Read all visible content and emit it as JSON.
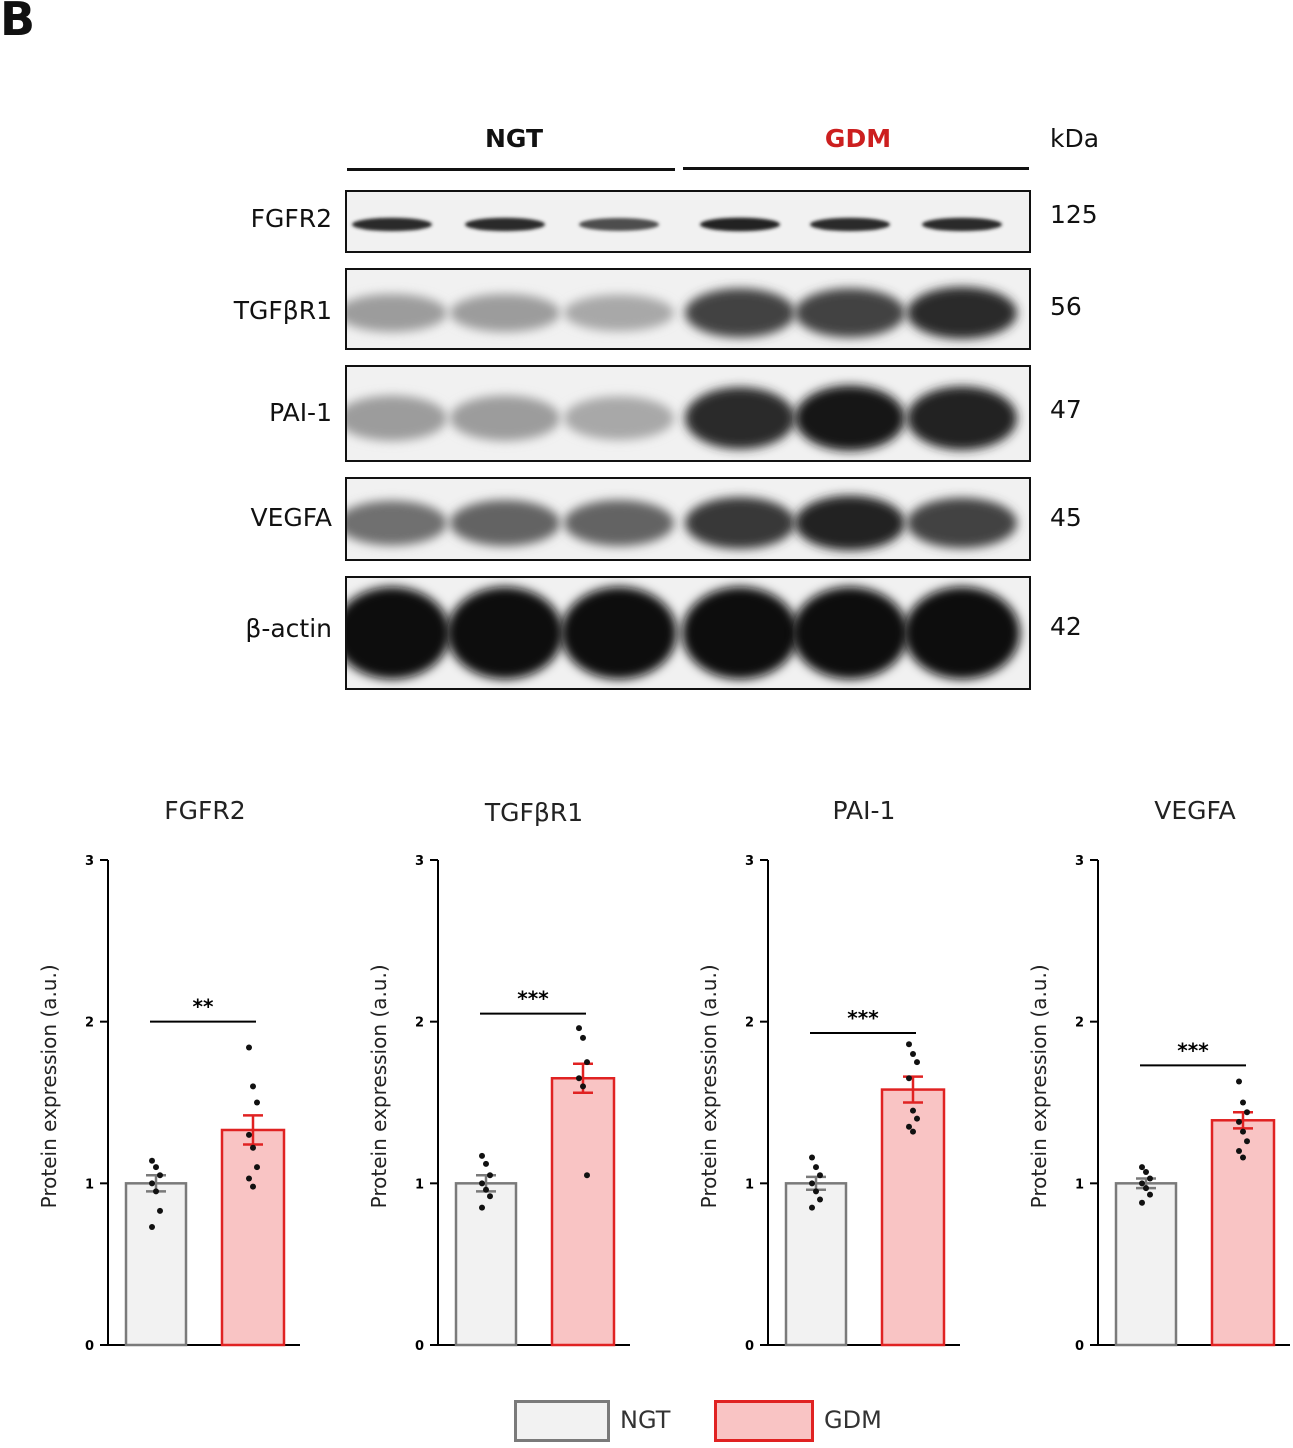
{
  "panel_letter": "B",
  "blot": {
    "group_labels": [
      {
        "text": "NGT",
        "color": "#111111"
      },
      {
        "text": "GDM",
        "color": "#cc1f1f"
      }
    ],
    "kda_header": "kDa",
    "rows": [
      {
        "label": "FGFR2",
        "kda": "125",
        "intensity": [
          0.85,
          0.85,
          0.7,
          0.9,
          0.85,
          0.85
        ],
        "band_type": "thin"
      },
      {
        "label": "TGFβR1",
        "kda": "56",
        "intensity": [
          0.35,
          0.35,
          0.3,
          0.75,
          0.75,
          0.85
        ],
        "band_type": "medium"
      },
      {
        "label": "PAI-1",
        "kda": "47",
        "intensity": [
          0.35,
          0.35,
          0.3,
          0.85,
          0.95,
          0.9
        ],
        "band_type": "medium"
      },
      {
        "label": "VEGFA",
        "kda": "45",
        "intensity": [
          0.55,
          0.6,
          0.6,
          0.8,
          0.9,
          0.75
        ],
        "band_type": "medium"
      },
      {
        "label": "β-actin",
        "kda": "42",
        "intensity": [
          1,
          1,
          1,
          1,
          1,
          1
        ],
        "band_type": "thick"
      }
    ]
  },
  "chart_data": [
    {
      "type": "bar",
      "title": "FGFR2",
      "ylabel": "Protein expression (a.u.)",
      "ylim": [
        0,
        3
      ],
      "yticks": [
        "0",
        "1",
        "2",
        "3"
      ],
      "categories": [
        "NGT",
        "GDM"
      ],
      "values": [
        1.0,
        1.33
      ],
      "errors": [
        0.05,
        0.09
      ],
      "points": [
        [
          1.14,
          1.1,
          1.05,
          1.0,
          0.95,
          0.83,
          0.73
        ],
        [
          1.84,
          1.6,
          1.5,
          1.3,
          1.22,
          1.1,
          1.03,
          0.98
        ]
      ],
      "significance": "**",
      "sig_y": 2.0
    },
    {
      "type": "bar",
      "title": "TGFβR1",
      "ylabel": "Protein expression (a.u.)",
      "ylim": [
        0,
        3
      ],
      "yticks": [
        "0",
        "1",
        "2",
        "3"
      ],
      "categories": [
        "NGT",
        "GDM"
      ],
      "values": [
        1.0,
        1.65
      ],
      "errors": [
        0.05,
        0.09
      ],
      "points": [
        [
          1.17,
          1.12,
          1.05,
          1.0,
          0.96,
          0.92,
          0.85
        ],
        [
          1.96,
          1.9,
          1.75,
          1.65,
          1.6,
          1.05
        ]
      ],
      "significance": "***",
      "sig_y": 2.05
    },
    {
      "type": "bar",
      "title": "PAI-1",
      "ylabel": "Protein expression (a.u.)",
      "ylim": [
        0,
        3
      ],
      "yticks": [
        "0",
        "1",
        "2",
        "3"
      ],
      "categories": [
        "NGT",
        "GDM"
      ],
      "values": [
        1.0,
        1.58
      ],
      "errors": [
        0.04,
        0.08
      ],
      "points": [
        [
          1.16,
          1.1,
          1.05,
          1.0,
          0.95,
          0.9,
          0.85
        ],
        [
          1.86,
          1.8,
          1.75,
          1.65,
          1.45,
          1.4,
          1.35,
          1.32
        ]
      ],
      "significance": "***",
      "sig_y": 1.93
    },
    {
      "type": "bar",
      "title": "VEGFA",
      "ylabel": "Protein expression (a.u.)",
      "ylim": [
        0,
        3
      ],
      "yticks": [
        "0",
        "1",
        "2",
        "3"
      ],
      "categories": [
        "NGT",
        "GDM"
      ],
      "values": [
        1.0,
        1.39
      ],
      "errors": [
        0.03,
        0.05
      ],
      "points": [
        [
          1.1,
          1.07,
          1.03,
          1.0,
          0.97,
          0.93,
          0.88
        ],
        [
          1.63,
          1.5,
          1.44,
          1.38,
          1.32,
          1.26,
          1.2,
          1.16
        ]
      ],
      "significance": "***",
      "sig_y": 1.73
    }
  ],
  "legend": [
    {
      "label": "NGT",
      "fill": "#f2f2f2",
      "stroke": "#7a7a7a"
    },
    {
      "label": "GDM",
      "fill": "#f9c4c4",
      "stroke": "#e02222"
    }
  ]
}
